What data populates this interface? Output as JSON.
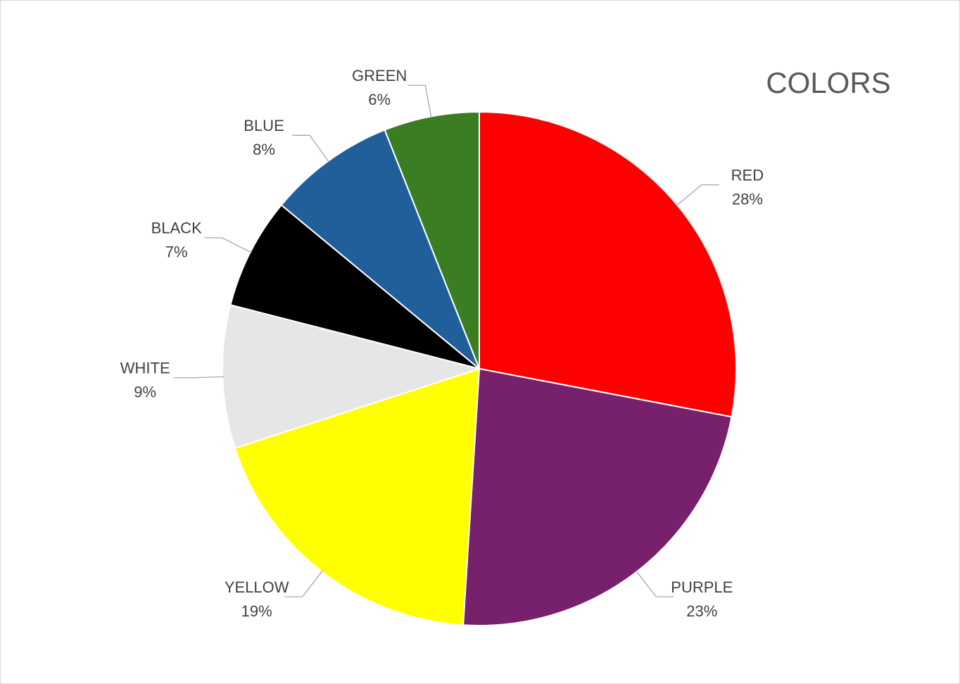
{
  "chart_data": {
    "type": "pie",
    "title": "COLORS",
    "categories": [
      "RED",
      "PURPLE",
      "YELLOW",
      "WHITE",
      "BLACK",
      "BLUE",
      "GREEN"
    ],
    "values": [
      28,
      23,
      19,
      9,
      7,
      8,
      6
    ],
    "value_labels": [
      "28%",
      "23%",
      "19%",
      "9%",
      "7%",
      "8%",
      "6%"
    ],
    "colors": [
      "#ff0000",
      "#77206b",
      "#ffff00",
      "#e7e6e6",
      "#000000",
      "#215f9a",
      "#3b7d23"
    ]
  }
}
